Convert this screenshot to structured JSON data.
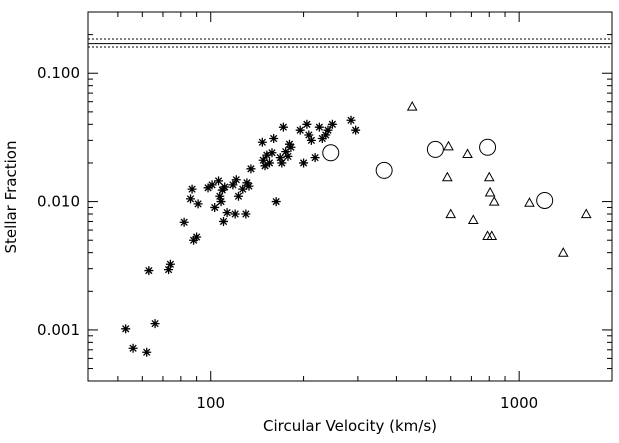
{
  "chart_data": {
    "type": "scatter",
    "title": "",
    "xlabel": "Circular Velocity (km/s)",
    "ylabel": "Stellar Fraction",
    "x_scale": "log",
    "y_scale": "log",
    "xlim": [
      40,
      2000
    ],
    "ylim": [
      0.0004,
      0.3
    ],
    "x_ticks": [
      {
        "value": 100,
        "label": "100"
      },
      {
        "value": 1000,
        "label": "1000"
      }
    ],
    "y_ticks": [
      {
        "value": 0.001,
        "label": "0.001"
      },
      {
        "value": 0.01,
        "label": "0.010"
      },
      {
        "value": 0.1,
        "label": "0.100"
      }
    ],
    "grid": false,
    "legend": "none",
    "reference_lines": [
      {
        "y": 0.17,
        "style": "solid"
      },
      {
        "y": 0.185,
        "style": "dotted"
      },
      {
        "y": 0.16,
        "style": "dotted"
      }
    ],
    "series": [
      {
        "marker": "asterisk",
        "points": [
          [
            53,
            0.00102
          ],
          [
            56,
            0.00072
          ],
          [
            62,
            0.00067
          ],
          [
            63,
            0.0029
          ],
          [
            66,
            0.00112
          ],
          [
            73,
            0.00295
          ],
          [
            74,
            0.00325
          ],
          [
            82,
            0.0069
          ],
          [
            86,
            0.0105
          ],
          [
            87,
            0.0125
          ],
          [
            88,
            0.005
          ],
          [
            90,
            0.0053
          ],
          [
            91,
            0.0096
          ],
          [
            98,
            0.0128
          ],
          [
            101,
            0.0135
          ],
          [
            103,
            0.009
          ],
          [
            106,
            0.0145
          ],
          [
            107,
            0.011
          ],
          [
            108,
            0.01
          ],
          [
            109,
            0.0123
          ],
          [
            110,
            0.007
          ],
          [
            111,
            0.013
          ],
          [
            113,
            0.0082
          ],
          [
            118,
            0.0135
          ],
          [
            120,
            0.008
          ],
          [
            121,
            0.0148
          ],
          [
            123,
            0.011
          ],
          [
            127,
            0.0125
          ],
          [
            130,
            0.008
          ],
          [
            131,
            0.014
          ],
          [
            133,
            0.0132
          ],
          [
            135,
            0.018
          ],
          [
            147,
            0.029
          ],
          [
            148,
            0.021
          ],
          [
            150,
            0.019
          ],
          [
            152,
            0.023
          ],
          [
            155,
            0.02
          ],
          [
            158,
            0.024
          ],
          [
            160,
            0.031
          ],
          [
            163,
            0.01
          ],
          [
            168,
            0.022
          ],
          [
            170,
            0.02
          ],
          [
            172,
            0.038
          ],
          [
            175,
            0.0245
          ],
          [
            178,
            0.0225
          ],
          [
            180,
            0.028
          ],
          [
            182,
            0.0265
          ],
          [
            195,
            0.036
          ],
          [
            200,
            0.02
          ],
          [
            205,
            0.04
          ],
          [
            208,
            0.033
          ],
          [
            212,
            0.03
          ],
          [
            218,
            0.022
          ],
          [
            225,
            0.038
          ],
          [
            230,
            0.031
          ],
          [
            236,
            0.033
          ],
          [
            240,
            0.036
          ],
          [
            248,
            0.04
          ],
          [
            285,
            0.043
          ],
          [
            295,
            0.036
          ]
        ]
      },
      {
        "marker": "open-circle",
        "points": [
          [
            245,
            0.024
          ],
          [
            365,
            0.0175
          ],
          [
            535,
            0.0255
          ],
          [
            790,
            0.0265
          ],
          [
            1210,
            0.0102
          ]
        ]
      },
      {
        "marker": "open-triangle",
        "points": [
          [
            450,
            0.055
          ],
          [
            590,
            0.027
          ],
          [
            585,
            0.0155
          ],
          [
            600,
            0.008
          ],
          [
            680,
            0.0235
          ],
          [
            710,
            0.0072
          ],
          [
            790,
            0.0054
          ],
          [
            800,
            0.0155
          ],
          [
            805,
            0.0118
          ],
          [
            815,
            0.0054
          ],
          [
            830,
            0.01
          ],
          [
            1080,
            0.0098
          ],
          [
            1390,
            0.004
          ],
          [
            1650,
            0.008
          ]
        ]
      }
    ]
  }
}
